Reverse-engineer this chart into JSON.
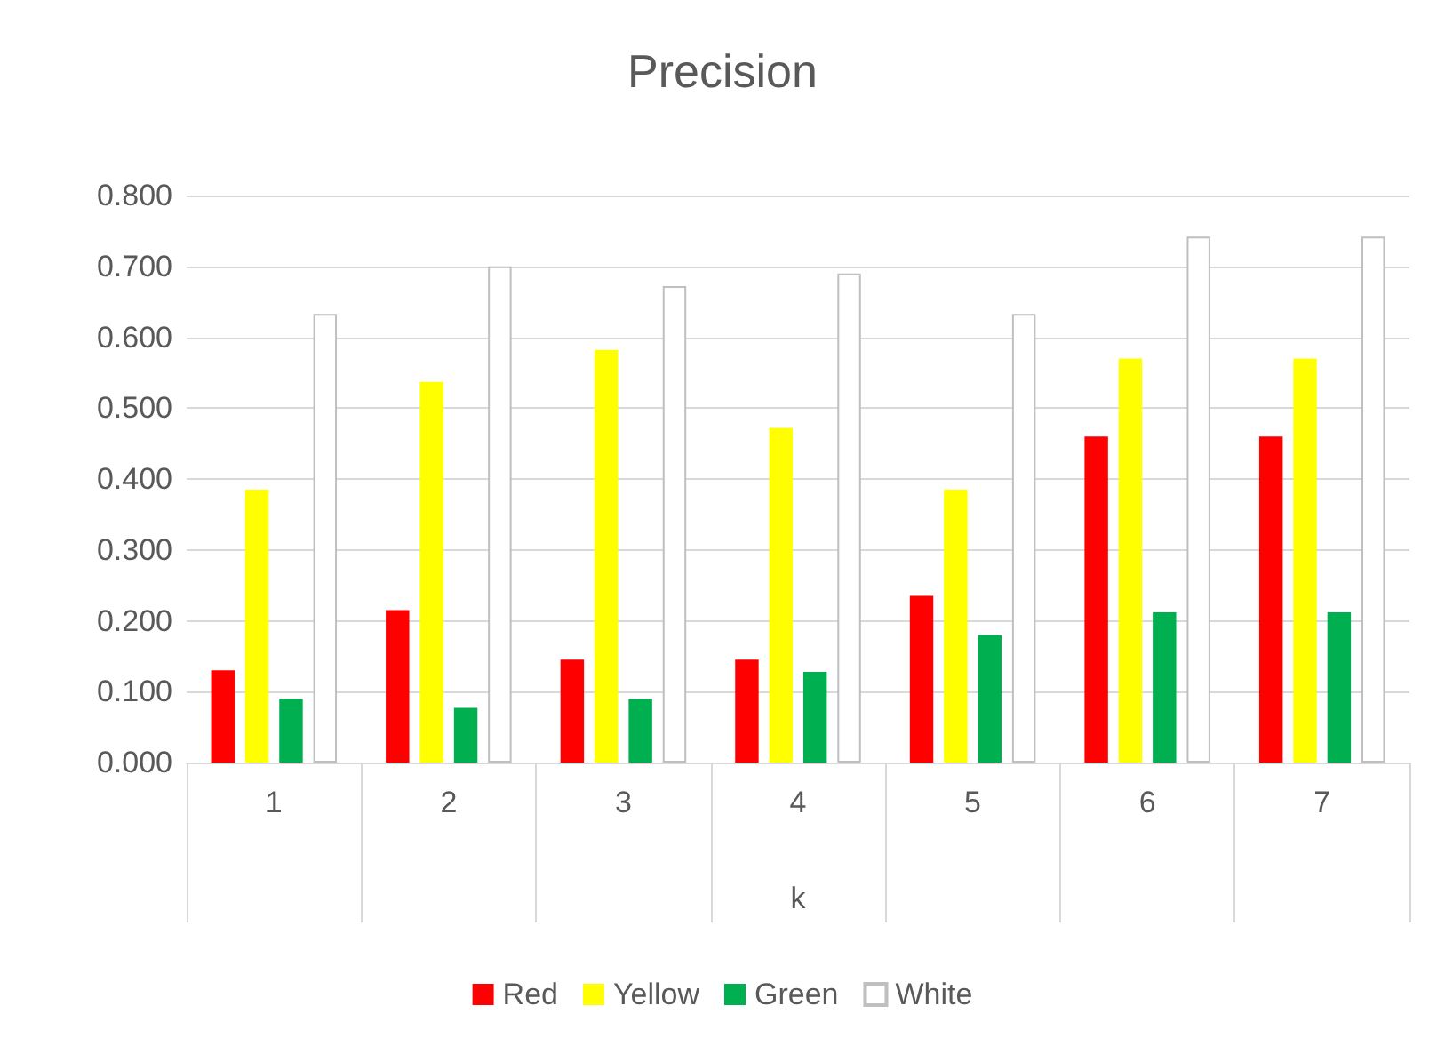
{
  "chart_data": {
    "type": "bar",
    "title": "Precision",
    "xlabel": "k",
    "categories": [
      "1",
      "2",
      "3",
      "4",
      "5",
      "6",
      "7"
    ],
    "series": [
      {
        "name": "Red",
        "color": "#ff0000",
        "values": [
          0.13,
          0.215,
          0.145,
          0.145,
          0.235,
          0.46,
          0.46
        ]
      },
      {
        "name": "Yellow",
        "color": "#ffff00",
        "values": [
          0.385,
          0.537,
          0.582,
          0.472,
          0.385,
          0.57,
          0.57
        ]
      },
      {
        "name": "Green",
        "color": "#00b050",
        "values": [
          0.09,
          0.077,
          0.09,
          0.128,
          0.18,
          0.212,
          0.212
        ]
      },
      {
        "name": "White",
        "color": "#ffffff",
        "values": [
          0.633,
          0.7,
          0.672,
          0.69,
          0.633,
          0.742,
          0.742
        ]
      }
    ],
    "ylim": [
      0,
      0.8
    ],
    "yticks": [
      {
        "value": 0,
        "label": "0.000"
      },
      {
        "value": 0.1,
        "label": "0.100"
      },
      {
        "value": 0.2,
        "label": "0.200"
      },
      {
        "value": 0.3,
        "label": "0.300"
      },
      {
        "value": 0.4,
        "label": "0.400"
      },
      {
        "value": 0.5,
        "label": "0.500"
      },
      {
        "value": 0.6,
        "label": "0.600"
      },
      {
        "value": 0.7,
        "label": "0.700"
      },
      {
        "value": 0.8,
        "label": "0.800"
      }
    ],
    "grid": "y",
    "legend": "bottom"
  }
}
